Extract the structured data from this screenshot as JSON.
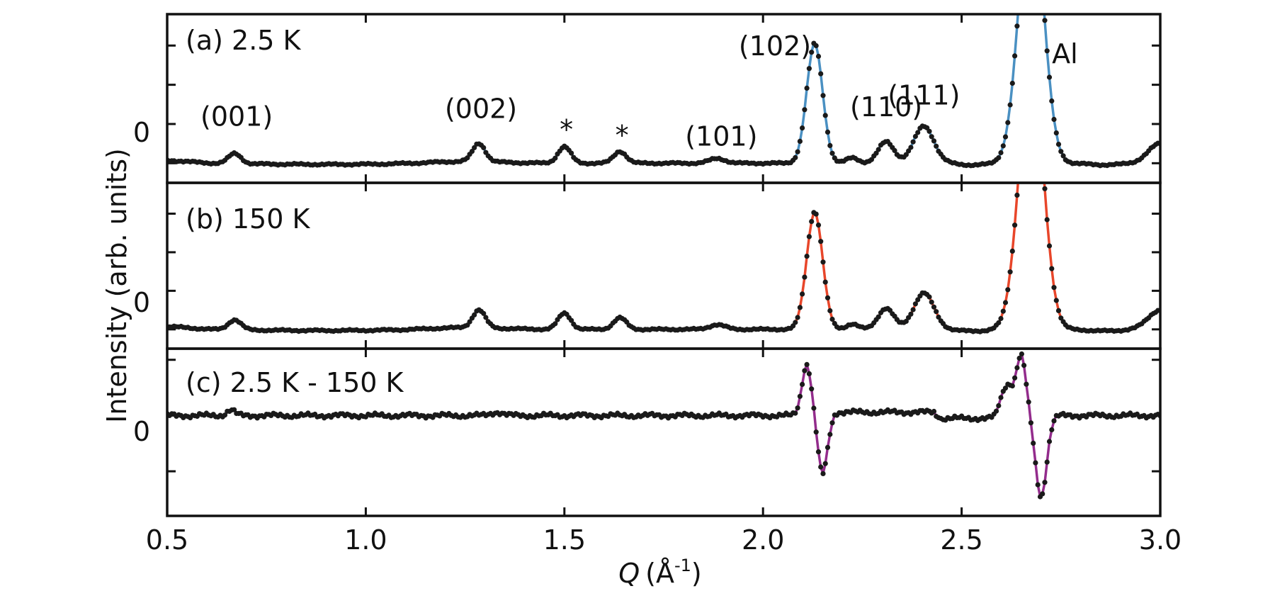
{
  "chart_data": {
    "type": "line",
    "xlabel_italic": "Q",
    "xlabel_unit": "(Å",
    "xlabel_exp": "-1",
    "xlabel_close": ")",
    "ylabel": "Intensity (arb. units)",
    "xlim": [
      0.5,
      3.0
    ],
    "xticks": [
      "0.5",
      "1.0",
      "1.5",
      "2.0",
      "2.5",
      "3.0"
    ],
    "xtick_values": [
      0.5,
      1.0,
      1.5,
      2.0,
      2.5,
      3.0
    ],
    "colors": {
      "a": "#4a90c2",
      "b": "#e8462a",
      "c": "#932c8c",
      "marker": "#1a1a1a"
    },
    "panels": [
      {
        "id": "a",
        "label": "(a) 2.5 K",
        "zero_label": "0",
        "ylim": [
          -0.5,
          3.8
        ],
        "peaks": [
          {
            "x": 0.67,
            "h": 0.26,
            "w": 0.016
          },
          {
            "x": 1.285,
            "h": 0.46,
            "w": 0.016
          },
          {
            "x": 1.5,
            "h": 0.42,
            "w": 0.016
          },
          {
            "x": 1.64,
            "h": 0.3,
            "w": 0.016
          },
          {
            "x": 1.885,
            "h": 0.12,
            "w": 0.02
          },
          {
            "x": 2.13,
            "h": 3.05,
            "w": 0.02
          },
          {
            "x": 2.225,
            "h": 0.14,
            "w": 0.015
          },
          {
            "x": 2.31,
            "h": 0.55,
            "w": 0.02
          },
          {
            "x": 2.405,
            "h": 0.95,
            "w": 0.025
          },
          {
            "x": 2.675,
            "h": 7.0,
            "w": 0.03
          },
          {
            "x": 3.0,
            "h": 0.5,
            "w": 0.03
          }
        ],
        "annotations": [
          {
            "text": "(001)",
            "x": 0.675,
            "y": 0.95
          },
          {
            "text": "(002)",
            "x": 1.29,
            "y": 1.15
          },
          {
            "text": "*",
            "x": 1.505,
            "y": 0.62
          },
          {
            "text": "*",
            "x": 1.645,
            "y": 0.48
          },
          {
            "text": "(101)",
            "x": 1.895,
            "y": 0.45
          },
          {
            "text": "(102)",
            "x": 2.03,
            "y": 2.75
          },
          {
            "text": "(110)",
            "x": 2.31,
            "y": 1.2
          },
          {
            "text": "(111)",
            "x": 2.405,
            "y": 1.5
          },
          {
            "text": "Al",
            "x": 2.76,
            "y": 2.55
          }
        ]
      },
      {
        "id": "b",
        "label": "(b) 150 K",
        "zero_label": "0",
        "ylim": [
          -0.5,
          3.8
        ],
        "peaks": [
          {
            "x": 0.67,
            "h": 0.26,
            "w": 0.016
          },
          {
            "x": 1.285,
            "h": 0.46,
            "w": 0.016
          },
          {
            "x": 1.5,
            "h": 0.42,
            "w": 0.016
          },
          {
            "x": 1.64,
            "h": 0.3,
            "w": 0.016
          },
          {
            "x": 1.885,
            "h": 0.12,
            "w": 0.02
          },
          {
            "x": 2.13,
            "h": 3.05,
            "w": 0.02
          },
          {
            "x": 2.225,
            "h": 0.14,
            "w": 0.015
          },
          {
            "x": 2.31,
            "h": 0.55,
            "w": 0.02
          },
          {
            "x": 2.405,
            "h": 0.95,
            "w": 0.025
          },
          {
            "x": 2.675,
            "h": 7.0,
            "w": 0.03
          },
          {
            "x": 3.0,
            "h": 0.5,
            "w": 0.03
          }
        ],
        "annotations": []
      },
      {
        "id": "c",
        "label": "(c) 2.5 K - 150 K",
        "zero_label": "0",
        "ylim": [
          -1.8,
          1.2
        ],
        "peaks": [
          {
            "x": 0.66,
            "h": 0.1,
            "w": 0.01
          },
          {
            "x": 1.33,
            "h": 0.06,
            "w": 0.015
          },
          {
            "x": 2.11,
            "h": 0.92,
            "w": 0.012
          },
          {
            "x": 2.15,
            "h": -1.05,
            "w": 0.012
          },
          {
            "x": 2.615,
            "h": 0.55,
            "w": 0.015
          },
          {
            "x": 2.65,
            "h": 1.05,
            "w": 0.012
          },
          {
            "x": 2.7,
            "h": -1.45,
            "w": 0.014
          }
        ],
        "steps": [
          {
            "from": 2.175,
            "to": 2.435,
            "h": 0.06
          },
          {
            "from": 2.445,
            "to": 2.59,
            "h": -0.05
          }
        ],
        "annotations": []
      }
    ]
  }
}
